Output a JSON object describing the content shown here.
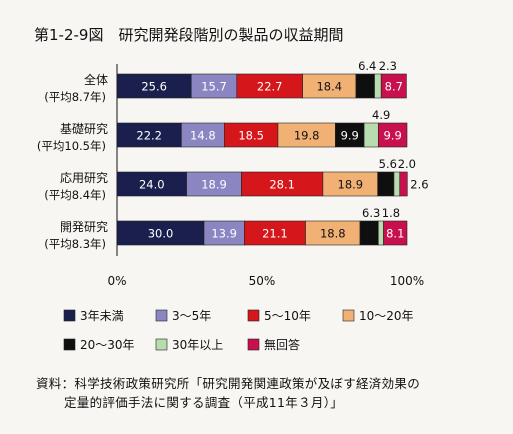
{
  "chart_data": {
    "type": "bar",
    "stacked": true,
    "orientation": "horizontal",
    "percent_scale": true,
    "title": "第1-2-9図　研究開発段階別の製品の収益期間",
    "categories": [
      {
        "name": "全体",
        "sub": "(平均8.7年)"
      },
      {
        "name": "基礎研究",
        "sub": "(平均10.5年)"
      },
      {
        "name": "応用研究",
        "sub": "(平均8.4年)"
      },
      {
        "name": "開発研究",
        "sub": "(平均8.3年)"
      }
    ],
    "series": [
      {
        "name": "3年未満",
        "color": "#1b1f4d",
        "values": [
          25.6,
          22.2,
          24.0,
          30.0
        ]
      },
      {
        "name": "3～5年",
        "color": "#8b86c2",
        "values": [
          15.7,
          14.8,
          18.9,
          13.9
        ]
      },
      {
        "name": "5～10年",
        "color": "#d5171b",
        "values": [
          22.7,
          18.5,
          28.1,
          21.1
        ]
      },
      {
        "name": "10～20年",
        "color": "#f2b174",
        "values": [
          18.4,
          19.8,
          18.9,
          18.8
        ]
      },
      {
        "name": "20～30年",
        "color": "#0f0f0f",
        "values": [
          6.4,
          9.9,
          5.6,
          6.3
        ]
      },
      {
        "name": "30年以上",
        "color": "#b9dcae",
        "values": [
          2.3,
          4.9,
          2.0,
          1.8
        ]
      },
      {
        "name": "無回答",
        "color": "#c8104f",
        "values": [
          8.7,
          9.9,
          2.6,
          8.1
        ]
      }
    ],
    "value_labels": [
      [
        "25.6",
        "15.7",
        "22.7",
        "18.4",
        "6.4",
        "2.3",
        "8.7"
      ],
      [
        "22.2",
        "14.8",
        "18.5",
        "19.8",
        "9.9",
        "4.9",
        "9.9"
      ],
      [
        "24.0",
        "18.9",
        "28.1",
        "18.9",
        "5.6",
        "2.0",
        "2.6"
      ],
      [
        "30.0",
        "13.9",
        "21.1",
        "18.8",
        "6.3",
        "1.8",
        "8.1"
      ]
    ],
    "xlim": [
      0,
      100
    ],
    "x_ticks": [
      "0%",
      "50%",
      "100%"
    ],
    "legend_position": "bottom"
  },
  "source": {
    "line1": "資料：科学技術政策研究所「研究開発関連政策が及ぼす経済効果の",
    "line2": "定量的評価手法に関する調査（平成11年３月）」"
  }
}
